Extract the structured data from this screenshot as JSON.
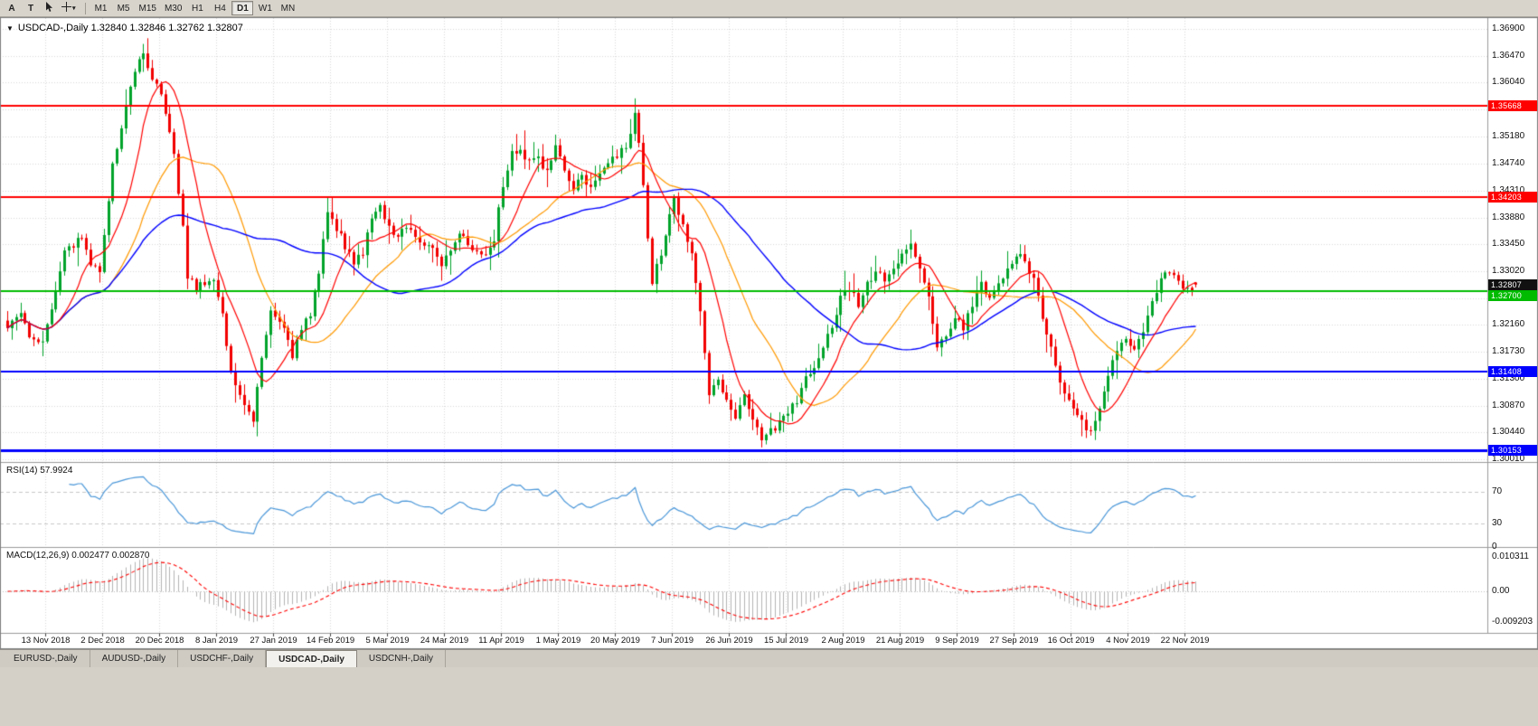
{
  "window": {
    "background": "#d4d0c8",
    "chart_background": "#ffffff"
  },
  "toolbar": {
    "button_a": "A",
    "button_t": "T",
    "timeframes": [
      "M1",
      "M5",
      "M15",
      "M30",
      "H1",
      "H4",
      "D1",
      "W1",
      "MN"
    ],
    "active_timeframe": "D1"
  },
  "chart": {
    "title_text": "USDCAD-,Daily  1.32840 1.32846 1.32762 1.32807"
  },
  "tabs": {
    "items": [
      "EURUSD-,Daily",
      "AUDUSD-,Daily",
      "USDCHF-,Daily",
      "USDCAD-,Daily",
      "USDCNH-,Daily"
    ],
    "active_index": 3
  },
  "chart_data": {
    "type": "candlestick",
    "symbol": "USDCAD-",
    "period": "Daily",
    "ohlc": {
      "open": 1.3284,
      "high": 1.32846,
      "low": 1.32762,
      "close": 1.32807
    },
    "current_price": {
      "value": 1.32807,
      "label": "1.32807"
    },
    "ylim": [
      1.2995,
      1.3695
    ],
    "y_ticks": [
      "1.36900",
      "1.36470",
      "1.36040",
      "1.35610",
      "1.35180",
      "1.34740",
      "1.34310",
      "1.33880",
      "1.33450",
      "1.33020",
      "1.32590",
      "1.32160",
      "1.31730",
      "1.31300",
      "1.30870",
      "1.30440",
      "1.30010"
    ],
    "x_labels": [
      "13 Nov 2018",
      "2 Dec 2018",
      "20 Dec 2018",
      "8 Jan 2019",
      "27 Jan 2019",
      "14 Feb 2019",
      "5 Mar 2019",
      "24 Mar 2019",
      "11 Apr 2019",
      "1 May 2019",
      "20 May 2019",
      "7 Jun 2019",
      "26 Jun 2019",
      "15 Jul 2019",
      "2 Aug 2019",
      "21 Aug 2019",
      "9 Sep 2019",
      "27 Sep 2019",
      "16 Oct 2019",
      "4 Nov 2019",
      "22 Nov 2019"
    ],
    "levels": [
      {
        "value": 1.35668,
        "label": "1.35668",
        "color": "#ff0000",
        "width": 2
      },
      {
        "value": 1.34203,
        "label": "1.34203",
        "color": "#ff0000",
        "width": 2
      },
      {
        "value": 1.327,
        "label": "1.32700",
        "color": "#00bb00",
        "width": 2
      },
      {
        "value": 1.31408,
        "label": "1.31408",
        "color": "#0000ff",
        "width": 2
      },
      {
        "value": 1.30153,
        "label": "1.30153",
        "color": "#0000ff",
        "width": 3
      }
    ],
    "moving_averages": [
      {
        "period": 10,
        "color": "#ff0000"
      },
      {
        "period": 25,
        "color": "#ff9900"
      },
      {
        "period": 50,
        "color": "#0000ff"
      }
    ],
    "price_keypoints": [
      [
        0,
        1.3215
      ],
      [
        3,
        1.3232
      ],
      [
        5,
        1.3198
      ],
      [
        8,
        1.3186
      ],
      [
        11,
        1.327
      ],
      [
        13,
        1.333
      ],
      [
        15,
        1.3345
      ],
      [
        17,
        1.3356
      ],
      [
        19,
        1.3312
      ],
      [
        21,
        1.3306
      ],
      [
        24,
        1.347
      ],
      [
        26,
        1.3535
      ],
      [
        28,
        1.36
      ],
      [
        30,
        1.364
      ],
      [
        31,
        1.365
      ],
      [
        32,
        1.3626
      ],
      [
        34,
        1.36
      ],
      [
        36,
        1.356
      ],
      [
        38,
        1.349
      ],
      [
        40,
        1.337
      ],
      [
        41,
        1.3296
      ],
      [
        43,
        1.3276
      ],
      [
        45,
        1.3286
      ],
      [
        47,
        1.3292
      ],
      [
        49,
        1.3232
      ],
      [
        51,
        1.314
      ],
      [
        53,
        1.31
      ],
      [
        55,
        1.3072
      ],
      [
        56,
        1.3066
      ],
      [
        58,
        1.316
      ],
      [
        60,
        1.3236
      ],
      [
        62,
        1.3222
      ],
      [
        64,
        1.3192
      ],
      [
        65,
        1.3162
      ],
      [
        67,
        1.3212
      ],
      [
        69,
        1.3236
      ],
      [
        71,
        1.33
      ],
      [
        73,
        1.3396
      ],
      [
        75,
        1.3372
      ],
      [
        77,
        1.3342
      ],
      [
        79,
        1.3316
      ],
      [
        81,
        1.333
      ],
      [
        83,
        1.3392
      ],
      [
        85,
        1.3402
      ],
      [
        87,
        1.3376
      ],
      [
        89,
        1.3356
      ],
      [
        91,
        1.3372
      ],
      [
        93,
        1.3356
      ],
      [
        95,
        1.3342
      ],
      [
        97,
        1.3336
      ],
      [
        99,
        1.3312
      ],
      [
        101,
        1.3336
      ],
      [
        103,
        1.3356
      ],
      [
        105,
        1.335
      ],
      [
        107,
        1.3332
      ],
      [
        109,
        1.3322
      ],
      [
        111,
        1.3356
      ],
      [
        113,
        1.344
      ],
      [
        115,
        1.349
      ],
      [
        117,
        1.3496
      ],
      [
        119,
        1.3476
      ],
      [
        121,
        1.3482
      ],
      [
        123,
        1.3462
      ],
      [
        125,
        1.35
      ],
      [
        127,
        1.3466
      ],
      [
        129,
        1.3436
      ],
      [
        131,
        1.3452
      ],
      [
        133,
        1.3442
      ],
      [
        135,
        1.3456
      ],
      [
        137,
        1.348
      ],
      [
        139,
        1.3486
      ],
      [
        141,
        1.3502
      ],
      [
        143,
        1.3552
      ],
      [
        144,
        1.3512
      ],
      [
        145,
        1.3436
      ],
      [
        146,
        1.3352
      ],
      [
        147,
        1.3286
      ],
      [
        149,
        1.3332
      ],
      [
        151,
        1.3396
      ],
      [
        152,
        1.3416
      ],
      [
        154,
        1.3372
      ],
      [
        156,
        1.333
      ],
      [
        158,
        1.3236
      ],
      [
        160,
        1.3102
      ],
      [
        162,
        1.3132
      ],
      [
        164,
        1.3092
      ],
      [
        166,
        1.3072
      ],
      [
        168,
        1.3102
      ],
      [
        170,
        1.306
      ],
      [
        172,
        1.3032
      ],
      [
        174,
        1.3046
      ],
      [
        176,
        1.306
      ],
      [
        178,
        1.3072
      ],
      [
        180,
        1.3096
      ],
      [
        182,
        1.313
      ],
      [
        184,
        1.3152
      ],
      [
        186,
        1.318
      ],
      [
        188,
        1.3216
      ],
      [
        190,
        1.326
      ],
      [
        192,
        1.3272
      ],
      [
        194,
        1.325
      ],
      [
        196,
        1.328
      ],
      [
        198,
        1.3302
      ],
      [
        200,
        1.3286
      ],
      [
        202,
        1.3306
      ],
      [
        204,
        1.3326
      ],
      [
        206,
        1.334
      ],
      [
        208,
        1.331
      ],
      [
        210,
        1.326
      ],
      [
        212,
        1.3182
      ],
      [
        214,
        1.32
      ],
      [
        216,
        1.323
      ],
      [
        218,
        1.3212
      ],
      [
        220,
        1.325
      ],
      [
        222,
        1.3282
      ],
      [
        224,
        1.326
      ],
      [
        226,
        1.328
      ],
      [
        228,
        1.3302
      ],
      [
        230,
        1.333
      ],
      [
        232,
        1.3318
      ],
      [
        234,
        1.329
      ],
      [
        236,
        1.3226
      ],
      [
        238,
        1.318
      ],
      [
        240,
        1.313
      ],
      [
        242,
        1.3092
      ],
      [
        244,
        1.307
      ],
      [
        246,
        1.305
      ],
      [
        247,
        1.3043
      ],
      [
        249,
        1.308
      ],
      [
        251,
        1.314
      ],
      [
        253,
        1.3172
      ],
      [
        255,
        1.3192
      ],
      [
        257,
        1.3172
      ],
      [
        259,
        1.321
      ],
      [
        261,
        1.3252
      ],
      [
        263,
        1.3292
      ],
      [
        265,
        1.3302
      ],
      [
        267,
        1.3282
      ],
      [
        269,
        1.3272
      ],
      [
        271,
        1.32807
      ]
    ],
    "extremes": [
      {
        "i": 31,
        "high": 1.3666
      },
      {
        "i": 143,
        "high": 1.3561
      },
      {
        "i": 172,
        "low": 1.302
      },
      {
        "i": 247,
        "low": 1.3039
      }
    ],
    "indicators": {
      "rsi": {
        "label": "RSI(14) 57.9924",
        "period": 14,
        "value": 57.9924,
        "levels": [
          70,
          30
        ],
        "color": "#4a97d9",
        "ticks": [
          {
            "v": 70,
            "label": "70"
          },
          {
            "v": 30,
            "label": "30"
          },
          {
            "v": 0,
            "label": "0"
          }
        ]
      },
      "macd": {
        "label": "MACD(12,26,9) 0.002477 0.002870",
        "fast": 12,
        "slow": 26,
        "signal": 9,
        "value": 0.002477,
        "signal_value": 0.00287,
        "hist_color": "#b4b4b4",
        "signal_color": "#ff0000",
        "ticks": [
          {
            "v": 0.010311,
            "label": "0.010311"
          },
          {
            "v": 0,
            "label": "0.00"
          },
          {
            "v": -0.009203,
            "label": "-0.009203"
          }
        ]
      }
    },
    "colors": {
      "bull": "#00a32a",
      "bear": "#f20000",
      "grid": "#d9d9d9",
      "separator": "#9a9a9a",
      "current_tag_bg": "#111111"
    }
  }
}
